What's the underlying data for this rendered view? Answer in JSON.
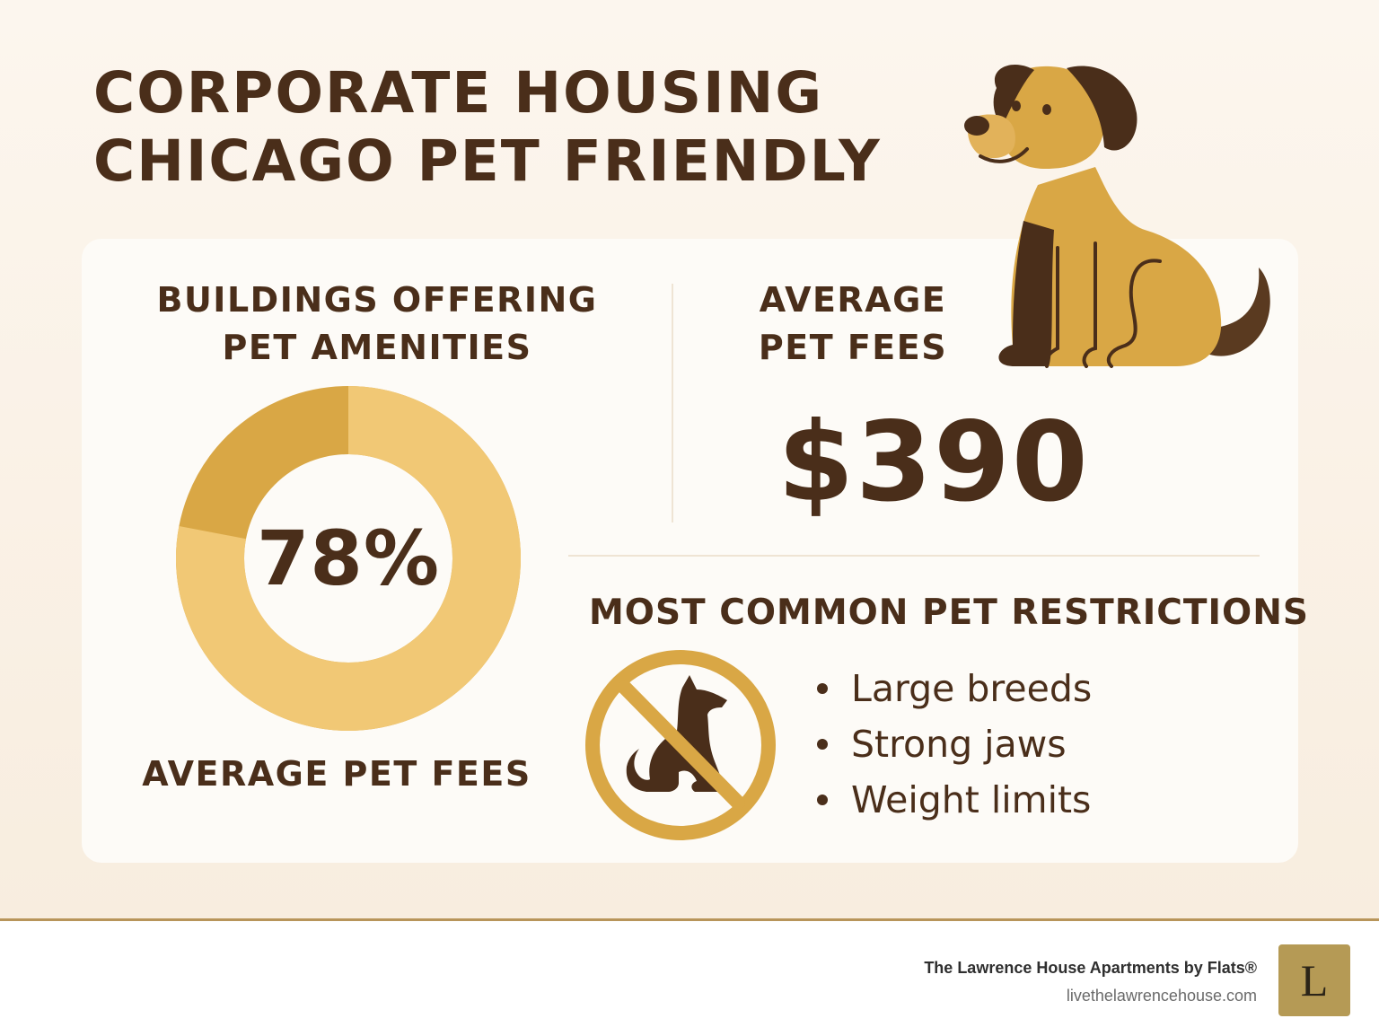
{
  "title": {
    "line1": "CORPORATE HOUSING",
    "line2": "CHICAGO PET FRIENDLY"
  },
  "buildings": {
    "heading_line1": "BUILDINGS OFFERING",
    "heading_line2": "PET AMENITIES",
    "percent_label": "78%",
    "percent_value": 78,
    "caption": "AVERAGE PET FEES"
  },
  "fees": {
    "heading_line1": "AVERAGE",
    "heading_line2": "PET FEES",
    "amount": "$390"
  },
  "restrictions": {
    "heading": "MOST COMMON PET RESTRICTIONS",
    "items": [
      "Large breeds",
      "Strong jaws",
      "Weight limits"
    ]
  },
  "footer": {
    "brand": "The Lawrence House Apartments by Flats®",
    "url": "livethelawrencehouse.com",
    "logo_letter": "L"
  },
  "colors": {
    "brown": "#4a2e1a",
    "gold": "#d9a745",
    "gold_light": "#f1c875",
    "accent_line": "#b8955a",
    "logo_bg": "#b59a55"
  },
  "icons": [
    "dog-illustration-icon",
    "no-dogs-icon",
    "donut-chart"
  ]
}
